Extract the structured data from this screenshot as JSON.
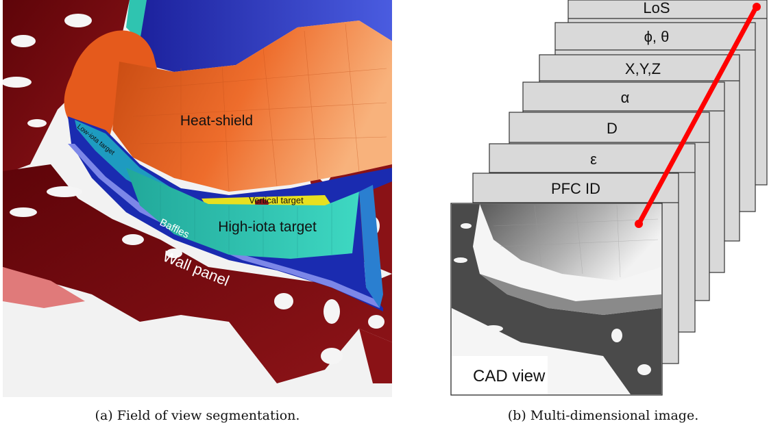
{
  "figure_a": {
    "labels": {
      "heat_shield": "Heat-shield",
      "low_iota_target": "Low-iota target",
      "vertical_target": "Vertical target",
      "high_iota_target": "High-iota target",
      "baffles": "Baffles",
      "wall_panel": "Wall panel"
    },
    "caption": "(a) Field of view segmentation."
  },
  "figure_b": {
    "layers": [
      "LoS",
      "ϕ, θ",
      "X,Y,Z",
      "α",
      "D",
      "ε",
      "PFC ID"
    ],
    "front_layer": "CAD view",
    "caption": "(b) Multi-dimensional image."
  },
  "colors": {
    "heat_shield": "#e8642a",
    "blue_panels": "#2030b8",
    "targets": "#2fc4b0",
    "wall_panel": "#7a0c10",
    "layer_fill": "#d9d9d9",
    "arrow": "#ff0000"
  }
}
